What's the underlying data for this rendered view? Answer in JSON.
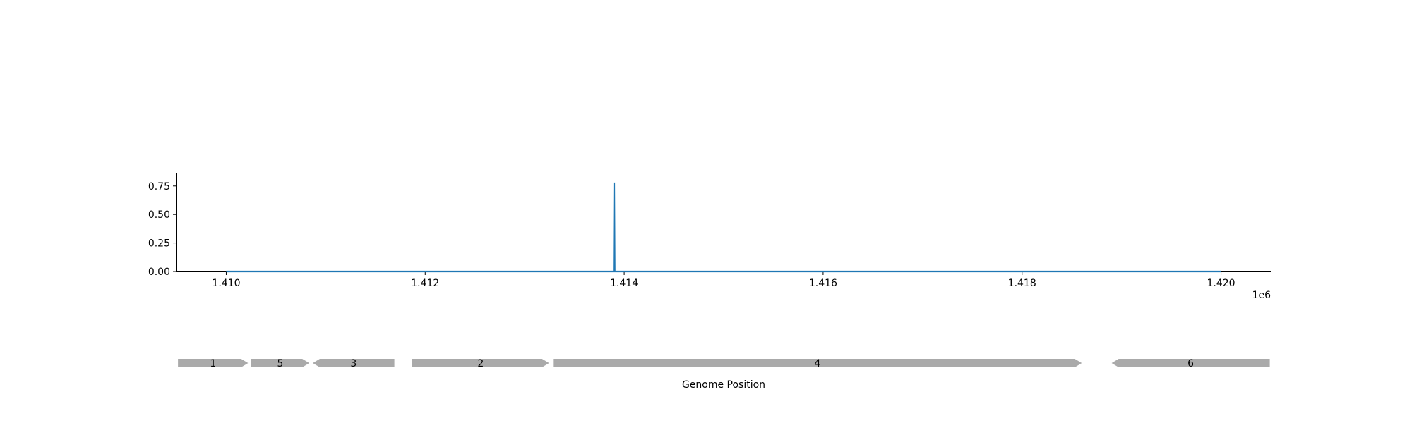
{
  "chart_data": [
    {
      "type": "line",
      "x_tick_labels": [
        "1.410",
        "1.412",
        "1.414",
        "1.416",
        "1.418",
        "1.420"
      ],
      "x_tick_values": [
        1410000,
        1412000,
        1414000,
        1416000,
        1418000,
        1420000
      ],
      "x_offset_label": "1e6",
      "y_tick_labels": [
        "0.00",
        "0.25",
        "0.50",
        "0.75"
      ],
      "y_tick_values": [
        0,
        0.25,
        0.5,
        0.75
      ],
      "xlim": [
        1409500,
        1420500
      ],
      "ylim": [
        0,
        0.86
      ],
      "grid": false,
      "series": [
        {
          "color": "#1f77b4",
          "x": [
            1410000,
            1413895,
            1413900,
            1413905,
            1420000
          ],
          "y": [
            0,
            0,
            0.78,
            0,
            0
          ]
        }
      ]
    },
    {
      "type": "gene-track",
      "xlabel": "Genome Position",
      "color": "#aaaaaa",
      "genes": [
        {
          "label": "1",
          "start": 1409515,
          "end": 1410220,
          "strand": "+"
        },
        {
          "label": "5",
          "start": 1410250,
          "end": 1410835,
          "strand": "+"
        },
        {
          "label": "3",
          "start": 1410870,
          "end": 1411690,
          "strand": "-"
        },
        {
          "label": "2",
          "start": 1411870,
          "end": 1413245,
          "strand": "+"
        },
        {
          "label": "4",
          "start": 1413285,
          "end": 1418600,
          "strand": "+"
        },
        {
          "label": "6",
          "start": 1418900,
          "end": 1420490,
          "strand": "-"
        }
      ]
    }
  ]
}
